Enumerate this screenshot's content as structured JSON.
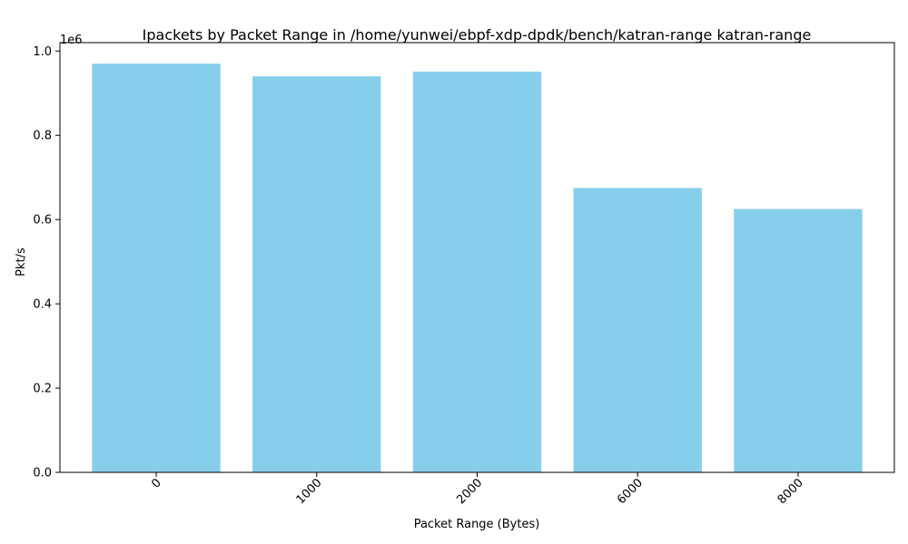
{
  "chart_data": {
    "type": "bar",
    "title": "Ipackets by Packet Range in /home/yunwei/ebpf-xdp-dpdk/bench/katran-range katran-range",
    "xlabel": "Packet Range (Bytes)",
    "ylabel": "Pkt/s",
    "y_offset_label": "1e6",
    "categories": [
      "0",
      "1000",
      "2000",
      "6000",
      "8000"
    ],
    "values": [
      970000,
      940000,
      951000,
      675000,
      625000
    ],
    "ylim": [
      0,
      1020000
    ],
    "yticks": [
      0,
      200000,
      400000,
      600000,
      800000,
      1000000
    ],
    "ytick_labels": [
      "0.0",
      "0.2",
      "0.4",
      "0.6",
      "0.8",
      "1.0"
    ],
    "xtick_rotation": 45,
    "bar_color": "#87ceeb",
    "grid": false,
    "legend": "none"
  }
}
